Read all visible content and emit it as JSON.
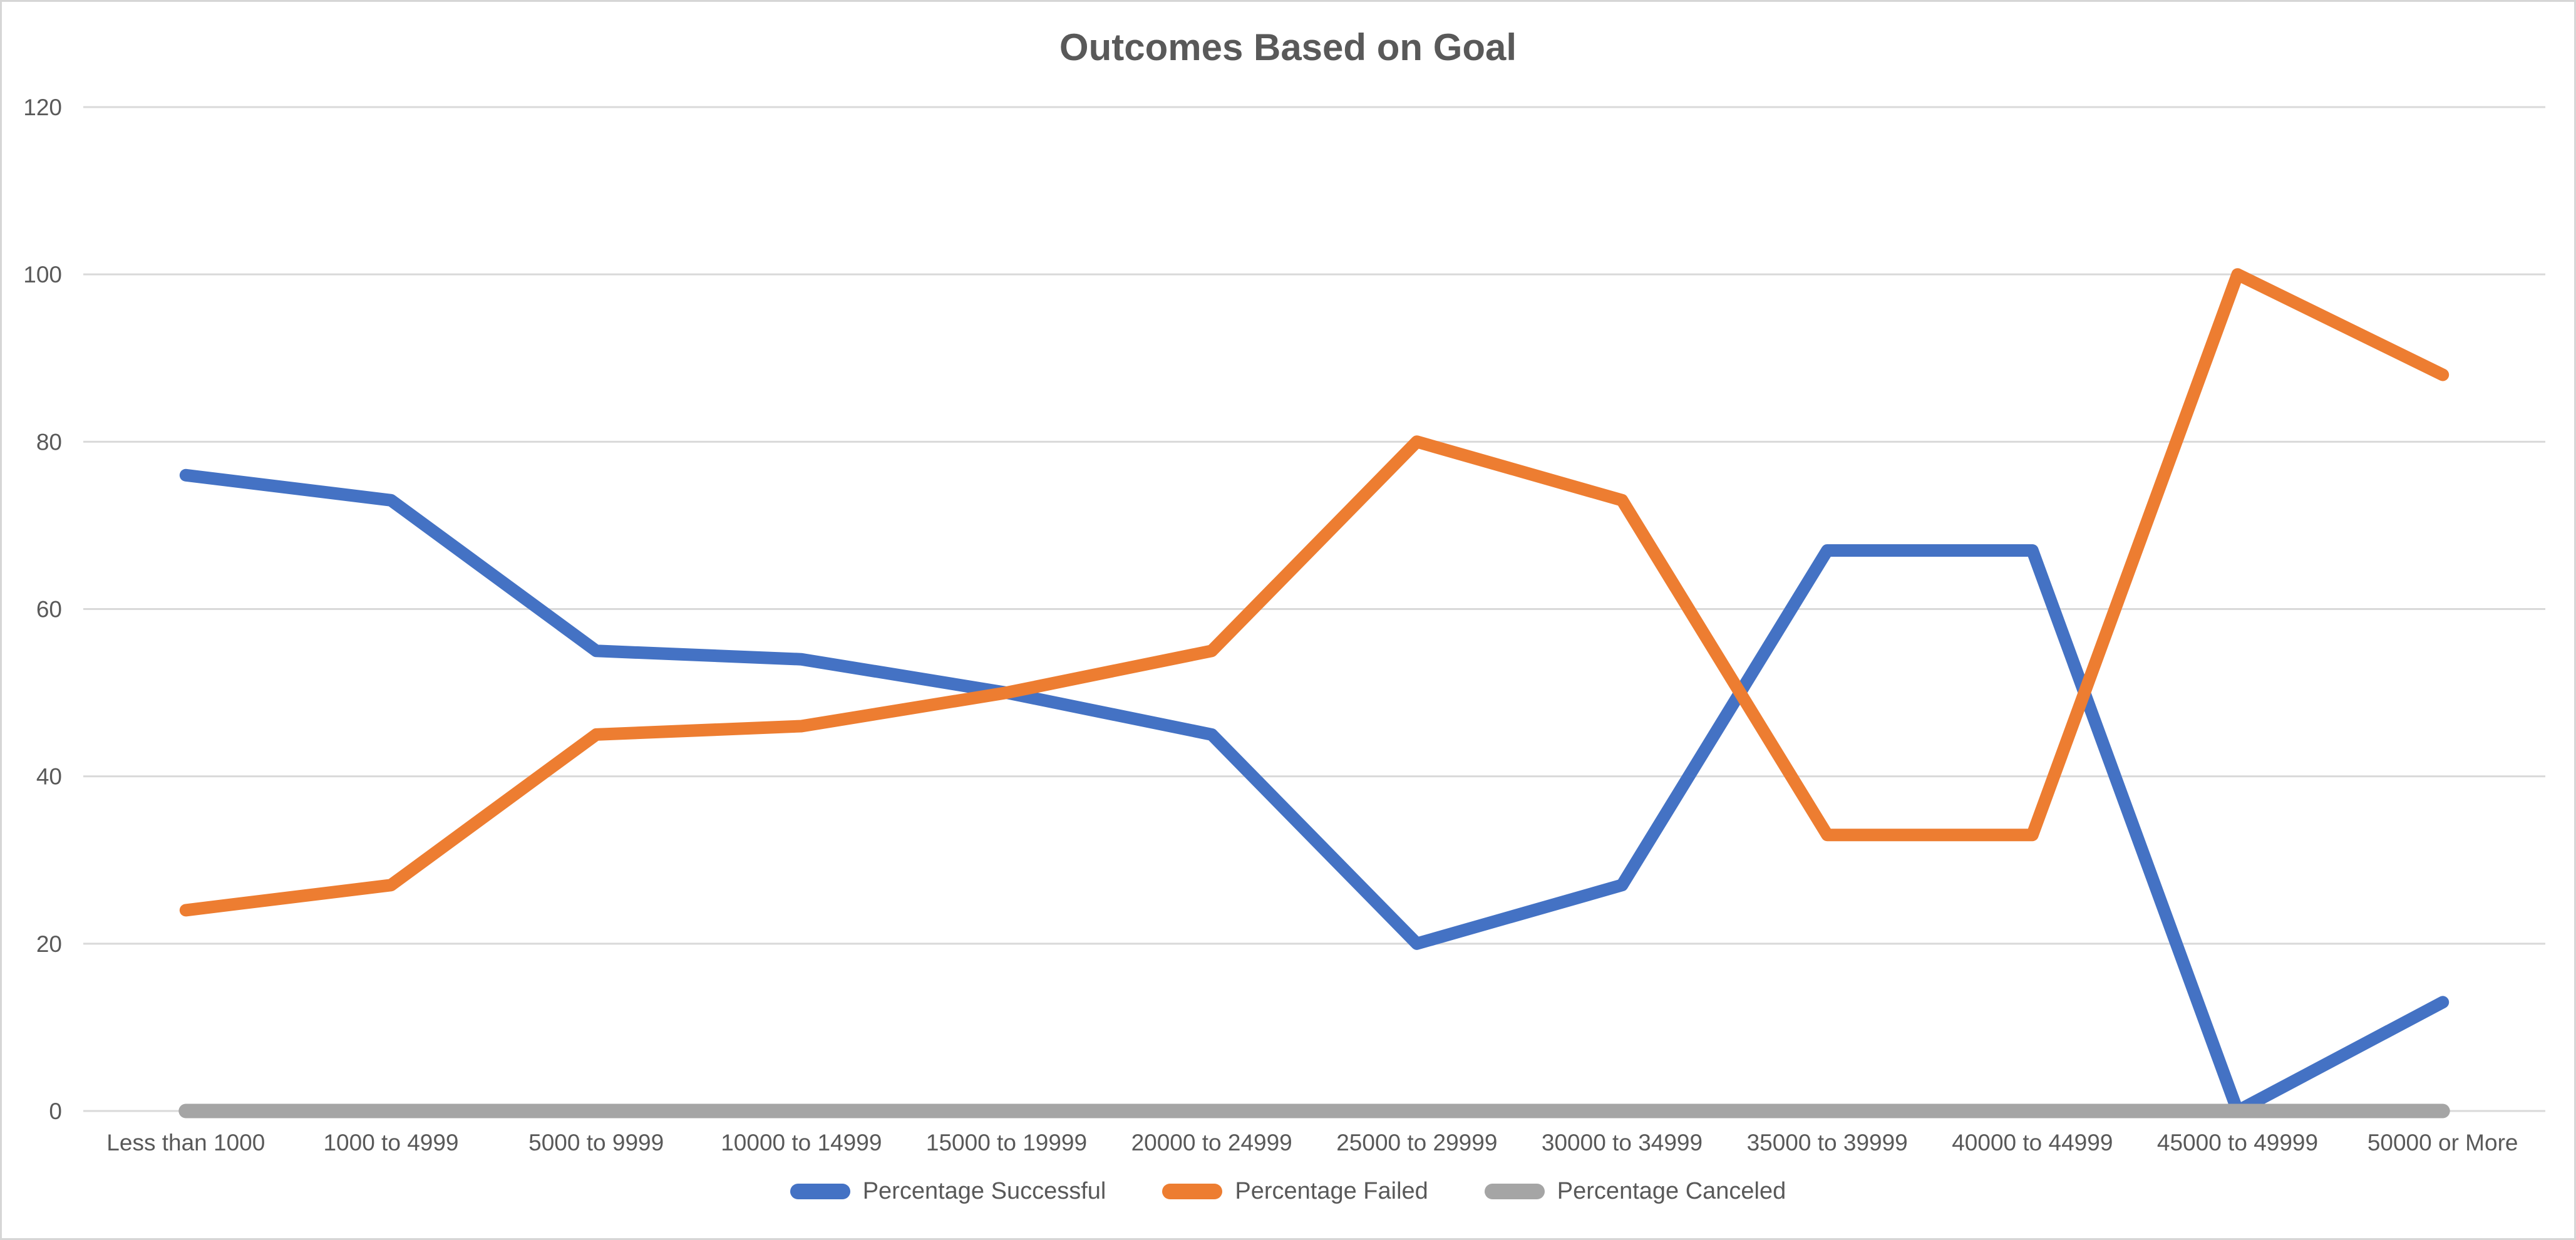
{
  "title": "Outcomes Based on Goal",
  "chart_data": {
    "type": "line",
    "title": "Outcomes Based on Goal",
    "categories": [
      "Less than 1000",
      "1000 to 4999",
      "5000 to 9999",
      "10000 to 14999",
      "15000 to 19999",
      "20000 to 24999",
      "25000 to 29999",
      "30000 to 34999",
      "35000 to 39999",
      "40000 to 44999",
      "45000 to 49999",
      "50000 or More"
    ],
    "series": [
      {
        "name": "Percentage Successful",
        "color": "#4472C4",
        "values": [
          76,
          73,
          55,
          54,
          50,
          45,
          20,
          27,
          67,
          67,
          0,
          13
        ]
      },
      {
        "name": "Percentage Failed",
        "color": "#ED7D31",
        "values": [
          24,
          27,
          45,
          46,
          50,
          55,
          80,
          73,
          33,
          33,
          100,
          88
        ]
      },
      {
        "name": "Percentage Canceled",
        "color": "#A5A5A5",
        "values": [
          0,
          0,
          0,
          0,
          0,
          0,
          0,
          0,
          0,
          0,
          0,
          0
        ]
      }
    ],
    "y_ticks": [
      0,
      20,
      40,
      60,
      80,
      100,
      120
    ],
    "ylim": [
      0,
      120
    ],
    "xlabel": "",
    "ylabel": "",
    "grid": true,
    "gridline_color": "#D9D9D9",
    "tick_label_color": "#595959",
    "legend_position": "bottom"
  }
}
